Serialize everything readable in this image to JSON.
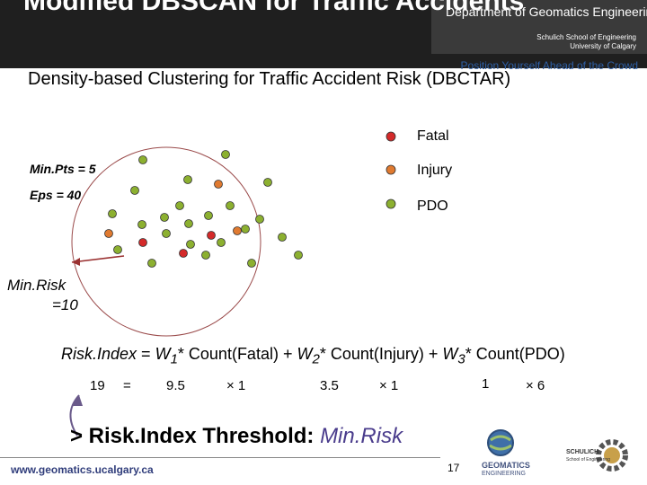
{
  "header": {
    "title": "Modified DBSCAN for Traffic Accidents",
    "department": "Department of Geomatics Engineering",
    "school": "Schulich School of Engineering",
    "university": "University of Calgary",
    "tagline": "Position Yourself Ahead of the Crowd"
  },
  "slide": {
    "subtitle": "Density-based Clustering for Traffic Accident Risk (DBCTAR)",
    "min_pts": "Min.Pts = 5",
    "eps": "Eps = 40",
    "min_risk_label_1": "Min.Risk",
    "min_risk_label_2": "=10"
  },
  "legend": [
    {
      "label": "Fatal",
      "color": "#d42a2a"
    },
    {
      "label": "Injury",
      "color": "#e07a30"
    },
    {
      "label": "PDO",
      "color": "#8cb030"
    }
  ],
  "formula": {
    "lhs": "Risk.Index",
    "eq": " = ",
    "w1": "W",
    "sub1": "1",
    "t1": "* Count(Fatal) + ",
    "w2": "W",
    "sub2": "2",
    "t2": "* Count(Injury) + ",
    "w3": "W",
    "sub3": "3",
    "t3": "* Count(PDO)"
  },
  "values": {
    "result": "19",
    "equals": "=",
    "w1": "9.5",
    "c1": "× 1",
    "w2": "3.5",
    "c2": "× 1",
    "w3": "1",
    "c3": "× 6"
  },
  "threshold": {
    "prefix": "> Risk.Index Threshold: ",
    "value": "Min.Risk"
  },
  "footer": {
    "url": "www.geomatics.ucalgary.ca",
    "page": "17",
    "logo_1": "GEOMATICS",
    "logo_2": "ENGINEERING",
    "schulich_1": "SCHULICH",
    "schulich_2": "School of Engineering"
  },
  "colors": {
    "fatal": "#d42a2a",
    "injury": "#e07a30",
    "pdo": "#8cb030"
  }
}
